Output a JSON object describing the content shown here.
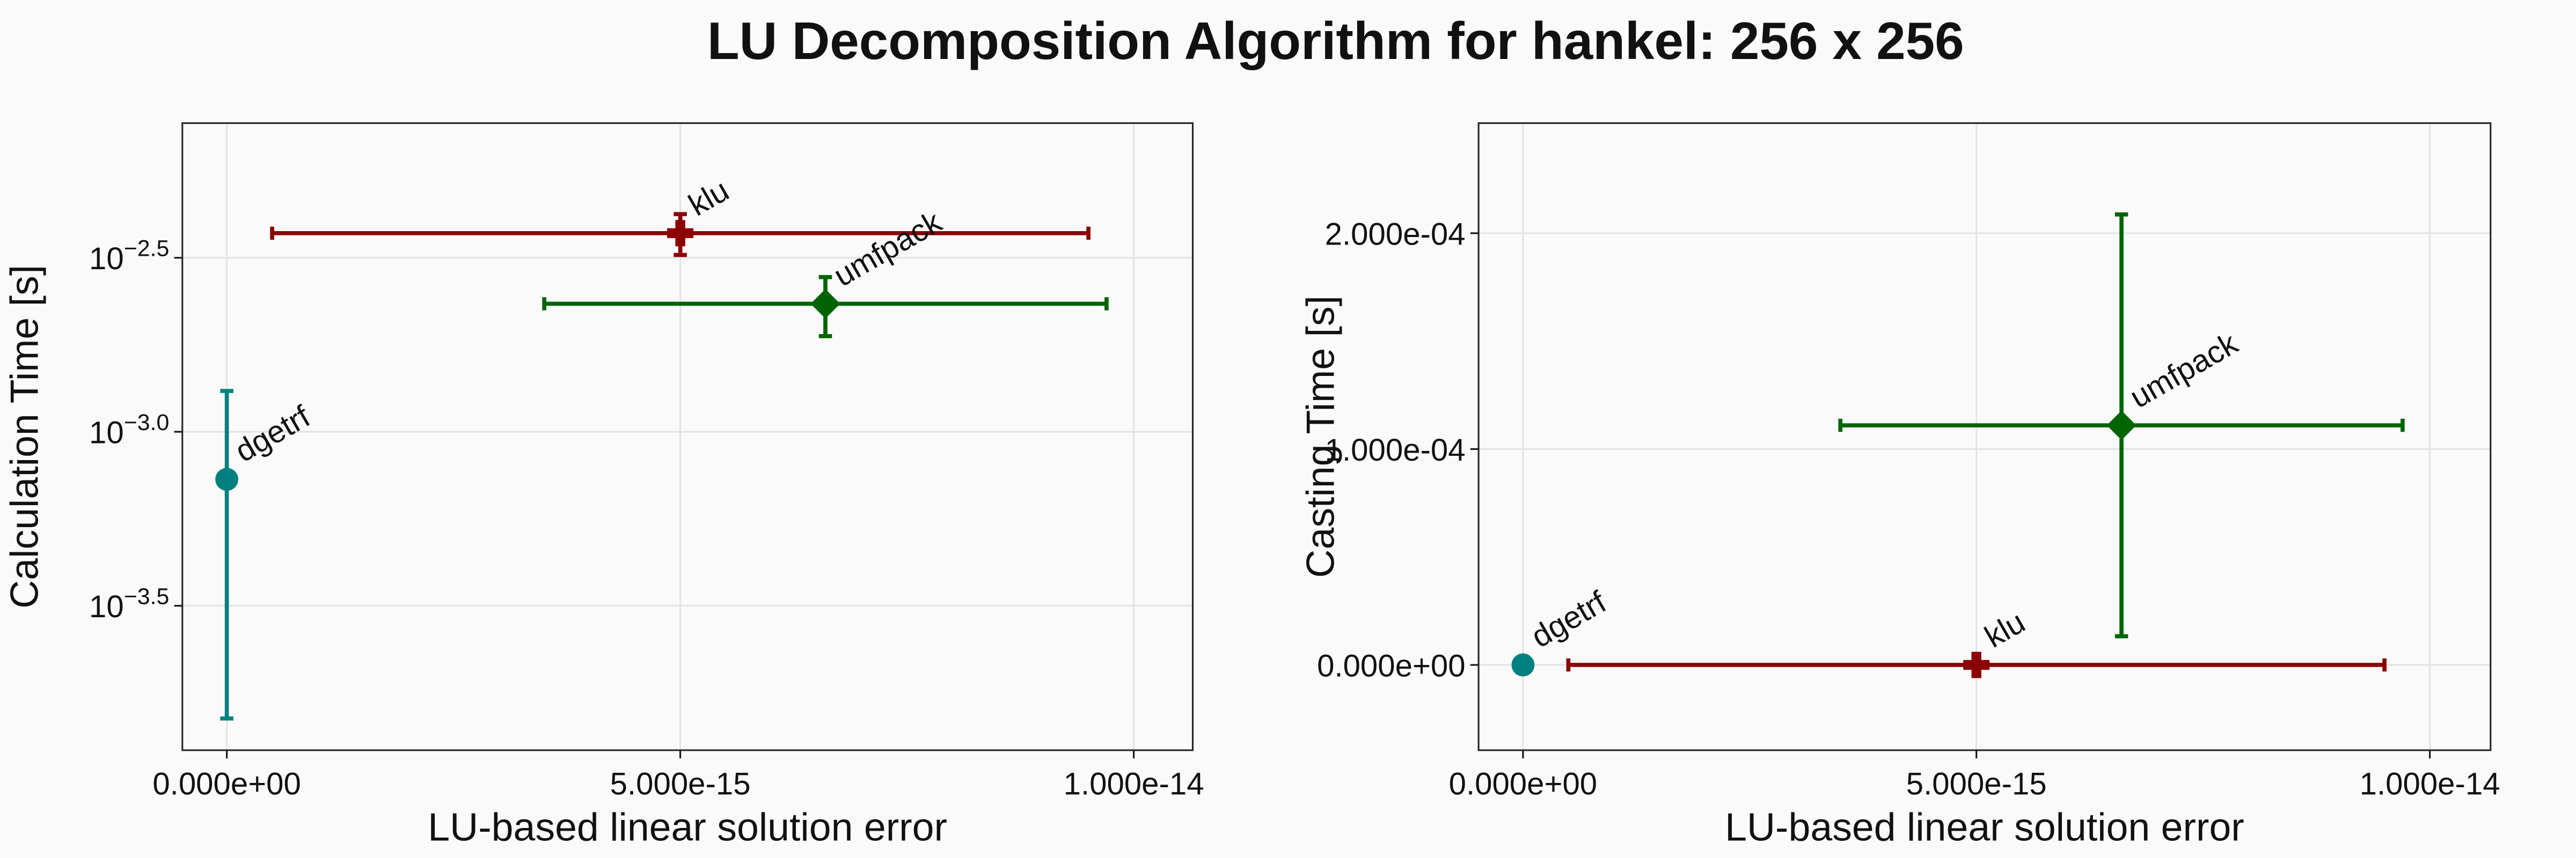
{
  "title": "LU Decomposition Algorithm for hankel: 256 x 256",
  "chart_data": [
    {
      "type": "scatter",
      "xlabel": "LU-based linear solution error",
      "ylabel": "Calculation Time [s]",
      "xlim": [
        -4.9e-16,
        1.065e-14
      ],
      "ylim": [
        0.0001216,
        0.00771
      ],
      "ylog": true,
      "grid": true,
      "xticks": [
        {
          "value": 0,
          "label": "0.000e+00"
        },
        {
          "value": 5e-15,
          "label": "5.000e-15"
        },
        {
          "value": 1e-14,
          "label": "1.000e-14"
        }
      ],
      "yticks": [
        {
          "value": 0.00316228,
          "label": "10−2.5"
        },
        {
          "value": 0.001,
          "label": "10−3.0"
        },
        {
          "value": 0.000316228,
          "label": "10−3.5"
        }
      ],
      "series": [
        {
          "name": "dgetrf",
          "color": "#008080",
          "marker": "circle",
          "x": [
            0
          ],
          "values": [
            0.00073
          ],
          "xerr": [
            null
          ],
          "yerr": [
            0.00058
          ]
        },
        {
          "name": "klu",
          "color": "#8b0000",
          "marker": "cross",
          "x": [
            5e-15
          ],
          "values": [
            0.003722
          ],
          "xerr": [
            4.5e-15
          ],
          "yerr": [
            0.0005
          ]
        },
        {
          "name": "umfpack",
          "color": "#006400",
          "marker": "diamond",
          "x": [
            6.6e-15
          ],
          "values": [
            0.002333
          ],
          "xerr": [
            3.1e-15
          ],
          "yerr": [
            0.00045
          ]
        }
      ]
    },
    {
      "type": "scatter",
      "xlabel": "LU-based linear solution error",
      "ylabel": "Casting Time [s]",
      "xlim": [
        -4.9e-16,
        1.067e-14
      ],
      "ylim": [
        -3.95e-05,
        0.000251
      ],
      "ylog": false,
      "grid": true,
      "xticks": [
        {
          "value": 0,
          "label": "0.000e+00"
        },
        {
          "value": 5e-15,
          "label": "5.000e-15"
        },
        {
          "value": 1e-14,
          "label": "1.000e-14"
        }
      ],
      "yticks": [
        {
          "value": 0,
          "label": "0.000e+00"
        },
        {
          "value": 0.0001,
          "label": "1.000e-04"
        },
        {
          "value": 0.0002,
          "label": "2.000e-04"
        }
      ],
      "series": [
        {
          "name": "dgetrf",
          "color": "#008080",
          "marker": "circle",
          "x": [
            0
          ],
          "values": [
            0
          ],
          "xerr": [
            null
          ],
          "yerr": [
            null
          ]
        },
        {
          "name": "klu",
          "color": "#8b0000",
          "marker": "cross",
          "x": [
            5e-15
          ],
          "values": [
            0
          ],
          "xerr": [
            4.5e-15
          ],
          "yerr": [
            null
          ]
        },
        {
          "name": "umfpack",
          "color": "#006400",
          "marker": "diamond",
          "x": [
            6.6e-15
          ],
          "values": [
            0.000111
          ],
          "xerr": [
            3.1e-15
          ],
          "yerr": [
            9.77e-05
          ]
        }
      ]
    }
  ]
}
